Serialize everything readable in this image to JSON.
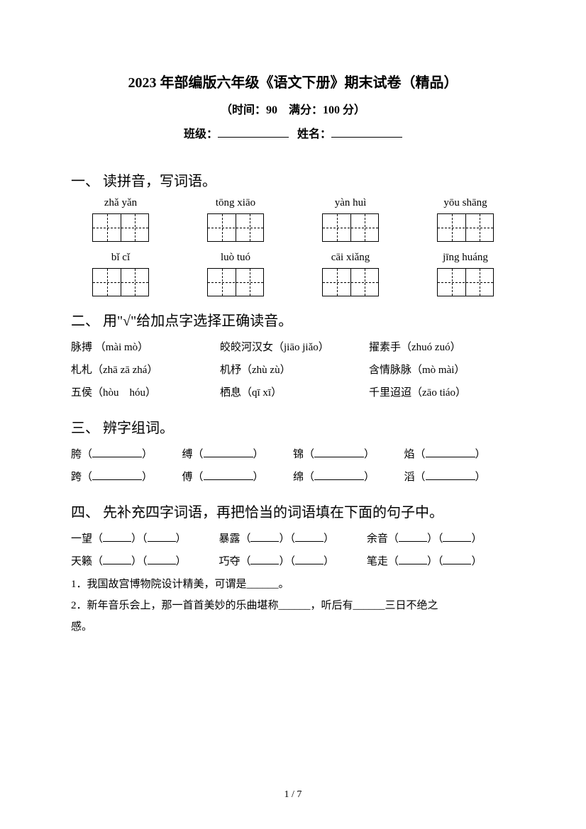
{
  "header": {
    "title": "2023 年部编版六年级《语文下册》期末试卷（精品）",
    "time_score": "（时间：90　满分：100 分）",
    "class_label": "班级：",
    "name_label": "姓名："
  },
  "q1": {
    "title": "一、 读拼音，写词语。",
    "row1": [
      "zhǎ yǎn",
      "tōng xiāo",
      "yàn huì",
      "yōu shāng"
    ],
    "row2": [
      "bǐ cǐ",
      "luò tuó",
      "cāi xiǎng",
      "jīng huáng"
    ]
  },
  "q2": {
    "title": "二、 用\"√\"给加点字选择正确读音。",
    "rows": [
      [
        "脉搏 （mài mò）",
        "皎皎河汉女（jiāo jiǎo）",
        "擢素手（zhuó zuó）"
      ],
      [
        "札札（zhā  zā  zhá）",
        "机杼（zhù   zù）",
        "含情脉脉（mò mài）"
      ],
      [
        "五侯（hòu　hóu）",
        "栖息（qī  xī）",
        "千里迢迢（zāo tiáo）"
      ]
    ]
  },
  "q3": {
    "title": "三、 辨字组词。",
    "rows": [
      [
        "胯",
        "缚",
        "锦",
        "焰"
      ],
      [
        "跨",
        "傅",
        "绵",
        "滔"
      ]
    ]
  },
  "q4": {
    "title": "四、 先补充四字词语，再把恰当的词语填在下面的句子中。",
    "rows": [
      [
        "一望",
        "暴露",
        "余音"
      ],
      [
        "天籁",
        "巧夺",
        "笔走"
      ]
    ],
    "s1": "1．我国故宫博物院设计精美，可谓是______。",
    "s2a": "2．新年音乐会上，那一首首美妙的乐曲堪称______，听后有______三日不绝之",
    "s2b": "感。"
  },
  "footer": "1 / 7"
}
